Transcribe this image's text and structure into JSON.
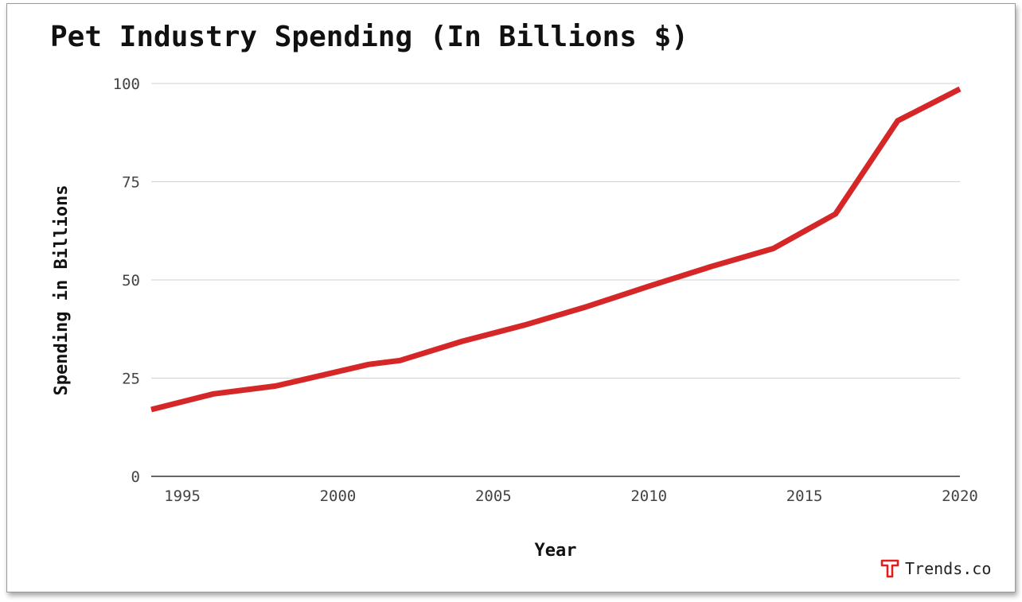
{
  "title": "Pet Industry Spending (In Billions $)",
  "brand": {
    "name": "Trends.co",
    "icon": "trends-logo-icon",
    "color": "#e02020"
  },
  "colors": {
    "line": "#d62728",
    "grid": "#d0d0d0",
    "axis": "#333333",
    "tick_text": "#444444",
    "label_text": "#111111"
  },
  "chart_data": {
    "type": "line",
    "title": "Pet Industry Spending (In Billions $)",
    "xlabel": "Year",
    "ylabel": "Spending in Billions",
    "xlim": [
      1994,
      2020
    ],
    "ylim": [
      0,
      100
    ],
    "xticks": [
      1995,
      2000,
      2005,
      2010,
      2015,
      2020
    ],
    "yticks": [
      0,
      25,
      50,
      75,
      100
    ],
    "grid": true,
    "legend": "none",
    "series": [
      {
        "x": [
          1994,
          1996,
          1998,
          2001,
          2002,
          2004,
          2006,
          2008,
          2010,
          2012,
          2014,
          2016,
          2018,
          2020
        ],
        "values": [
          17,
          21,
          23,
          28.5,
          29.5,
          34.4,
          38.5,
          43.2,
          48.4,
          53.4,
          58,
          66.8,
          90.5,
          98.6
        ]
      }
    ]
  }
}
